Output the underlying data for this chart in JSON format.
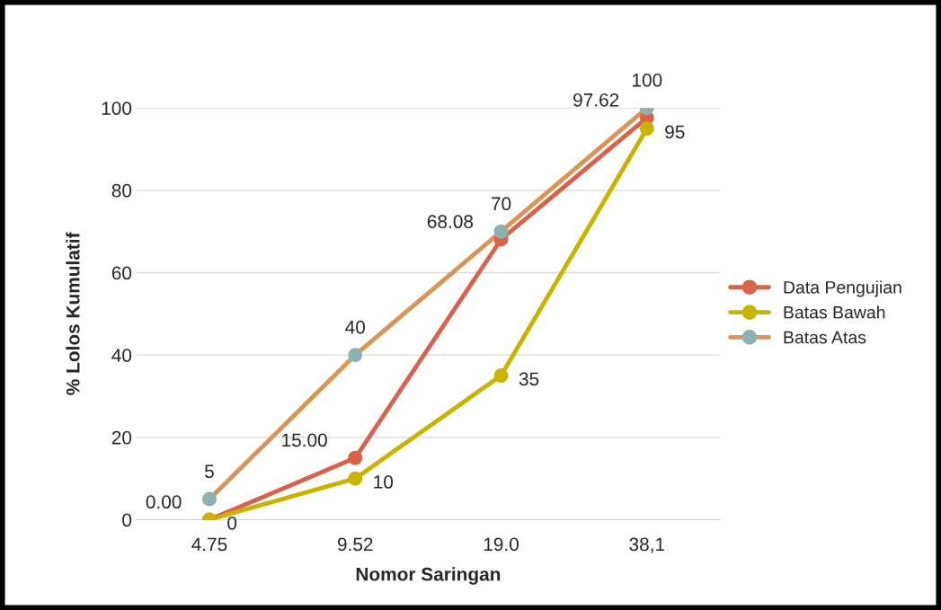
{
  "chart_data": {
    "type": "line",
    "xlabel": "Nomor Saringan",
    "ylabel": "% Lolos Kumulatif",
    "categories": [
      "4.75",
      "9.52",
      "19.0",
      "38,1"
    ],
    "series": [
      {
        "name": "Data Pengujian",
        "color": "#d8634a",
        "values": [
          0,
          15,
          68.08,
          97.62
        ],
        "value_labels": [
          "0.00",
          "15.00",
          "68.08",
          "97.62"
        ]
      },
      {
        "name": "Batas Bawah",
        "color": "#c8b400",
        "values": [
          0,
          10,
          35,
          95
        ],
        "value_labels": [
          "0",
          "10",
          "35",
          "95"
        ]
      },
      {
        "name": "Batas Atas",
        "color": "#d99553",
        "colors": [
          "#8fb0b3",
          "#8fb0b3",
          "#8fb0b3",
          "#8fb0b3"
        ],
        "values": [
          5,
          40,
          70,
          100
        ],
        "value_labels": [
          "5",
          "40",
          "70",
          "100"
        ]
      }
    ],
    "ylim": [
      0,
      100
    ],
    "yticks": [
      0,
      20,
      40,
      60,
      80,
      100
    ],
    "grid": "y",
    "legend": "right",
    "marker": "circle",
    "line_style": "solid"
  }
}
